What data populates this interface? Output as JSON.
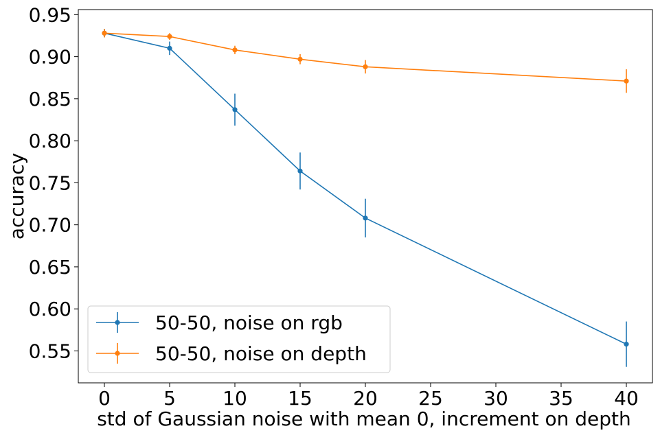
{
  "chart_data": {
    "type": "line",
    "title": "",
    "xlabel": "std of Gaussian noise with mean 0, increment on depth",
    "ylabel": "accuracy",
    "xlim": [
      -2,
      42
    ],
    "ylim": [
      0.512,
      0.956
    ],
    "xticks": [
      0,
      5,
      10,
      15,
      20,
      25,
      30,
      35,
      40
    ],
    "xtick_labels": [
      "0",
      "5",
      "10",
      "15",
      "20",
      "25",
      "30",
      "35",
      "40"
    ],
    "yticks": [
      0.55,
      0.6,
      0.65,
      0.7,
      0.75,
      0.8,
      0.85,
      0.9,
      0.95
    ],
    "ytick_labels": [
      "0.55",
      "0.60",
      "0.65",
      "0.70",
      "0.75",
      "0.80",
      "0.85",
      "0.90",
      "0.95"
    ],
    "grid": false,
    "legend_position": "lower-left",
    "x": [
      0,
      5,
      10,
      15,
      20,
      40
    ],
    "series": [
      {
        "name": "50-50, noise on rgb",
        "color": "#1f77b4",
        "values": [
          0.928,
          0.91,
          0.837,
          0.764,
          0.708,
          0.558
        ],
        "errors": [
          0.005,
          0.008,
          0.019,
          0.022,
          0.023,
          0.027
        ]
      },
      {
        "name": "50-50, noise on depth",
        "color": "#ff7f0e",
        "values": [
          0.928,
          0.924,
          0.908,
          0.897,
          0.888,
          0.871
        ],
        "errors": [
          0.005,
          0.004,
          0.005,
          0.006,
          0.008,
          0.014
        ]
      }
    ]
  }
}
